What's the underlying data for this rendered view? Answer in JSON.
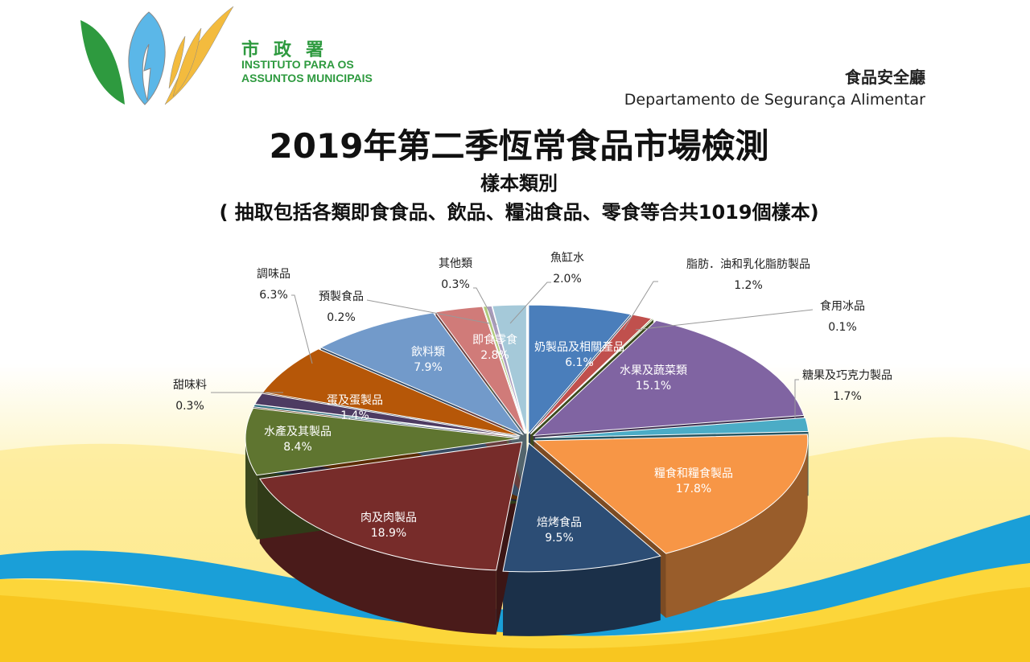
{
  "header": {
    "logo_cn": "市政署",
    "logo_pt_line1": "INSTITUTO PARA OS",
    "logo_pt_line2": "ASSUNTOS MUNICIPAIS",
    "dept_cn": "食品安全廳",
    "dept_pt": "Departamento de Segurança Alimentar"
  },
  "chart_data": {
    "type": "pie",
    "style": "3d-exploded",
    "title": "2019年第二季恆常食品市場檢測",
    "subtitle": "樣本類別",
    "note": "( 抽取包括各類即食食品、飲品、糧油食品、零食等合共1019個樣本)",
    "unit": "%",
    "slices": [
      {
        "label": "奶製品及相關產品",
        "value": 6.1,
        "display": "6.1%",
        "color": "#4a7ebb"
      },
      {
        "label": "脂肪．油和乳化脂肪製品",
        "value": 1.2,
        "display": "1.2%",
        "color": "#c0504d"
      },
      {
        "label": "食用冰品",
        "value": 0.1,
        "display": "0.1%",
        "color": "#77933c"
      },
      {
        "label": "水果及蔬菜類",
        "value": 15.1,
        "display": "15.1%",
        "color": "#8064a2"
      },
      {
        "label": "糖果及巧克力製品",
        "value": 1.7,
        "display": "1.7%",
        "color": "#4bacc6"
      },
      {
        "label": "糧食和糧食製品",
        "value": 17.8,
        "display": "17.8%",
        "color": "#f79646"
      },
      {
        "label": "焙烤食品",
        "value": 9.5,
        "display": "9.5%",
        "color": "#2c4d75"
      },
      {
        "label": "肉及肉製品",
        "value": 18.9,
        "display": "18.9%",
        "color": "#772c2a"
      },
      {
        "label": "水產及其製品",
        "value": 8.4,
        "display": "8.4%",
        "color": "#5f7530"
      },
      {
        "label": "甜味料",
        "value": 0.3,
        "display": "0.3%",
        "color": "#276a7c"
      },
      {
        "label": "蛋及蛋製品",
        "value": 1.4,
        "display": "1.4%",
        "color": "#4d3b62"
      },
      {
        "label": "調味品",
        "value": 6.3,
        "display": "6.3%",
        "color": "#b65708"
      },
      {
        "label": "飲料類",
        "value": 7.9,
        "display": "7.9%",
        "color": "#729aca"
      },
      {
        "label": "即食零食",
        "value": 2.8,
        "display": "2.8%",
        "color": "#d07b79"
      },
      {
        "label": "預製食品",
        "value": 0.2,
        "display": "0.2%",
        "color": "#afc97a"
      },
      {
        "label": "其他類",
        "value": 0.3,
        "display": "0.3%",
        "color": "#a99bbd"
      },
      {
        "label": "魚缸水",
        "value": 2.0,
        "display": "2.0%",
        "color": "#a5c9d9"
      }
    ]
  }
}
